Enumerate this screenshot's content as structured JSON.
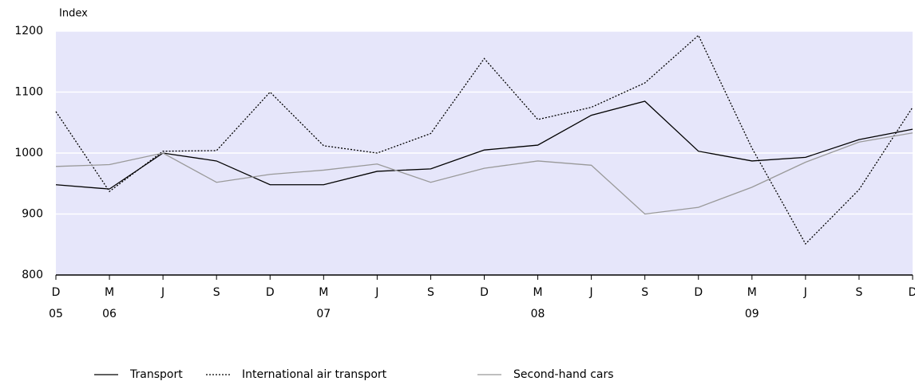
{
  "chart_data": {
    "type": "line",
    "y_axis_label": "Index",
    "categories": [
      "D",
      "M",
      "J",
      "S",
      "D",
      "M",
      "J",
      "S",
      "D",
      "M",
      "J",
      "S",
      "D",
      "M",
      "J",
      "S",
      "D"
    ],
    "category_groups": [
      "05",
      "06",
      null,
      null,
      null,
      "07",
      null,
      null,
      null,
      "08",
      null,
      null,
      null,
      "09",
      null,
      null,
      null
    ],
    "series": [
      {
        "name": "Transport",
        "color": "#000000",
        "dash": "solid",
        "values": [
          948,
          941,
          1000,
          987,
          948,
          948,
          970,
          974,
          1005,
          1013,
          1062,
          1085,
          1003,
          987,
          993,
          1022,
          1039
        ]
      },
      {
        "name": "International air transport",
        "color": "#000000",
        "dash": "dotted",
        "values": [
          1068,
          937,
          1003,
          1004,
          1100,
          1012,
          1000,
          1032,
          1155,
          1055,
          1075,
          1115,
          1193,
          1008,
          851,
          940,
          1075
        ]
      },
      {
        "name": "Second-hand cars",
        "color": "#999999",
        "dash": "solid",
        "values": [
          978,
          981,
          1000,
          952,
          965,
          972,
          982,
          952,
          975,
          987,
          980,
          900,
          911,
          944,
          985,
          1018,
          1033
        ]
      }
    ],
    "ylim": [
      800,
      1200
    ],
    "yticks": [
      800,
      900,
      1000,
      1100,
      1200
    ],
    "grid": true
  }
}
